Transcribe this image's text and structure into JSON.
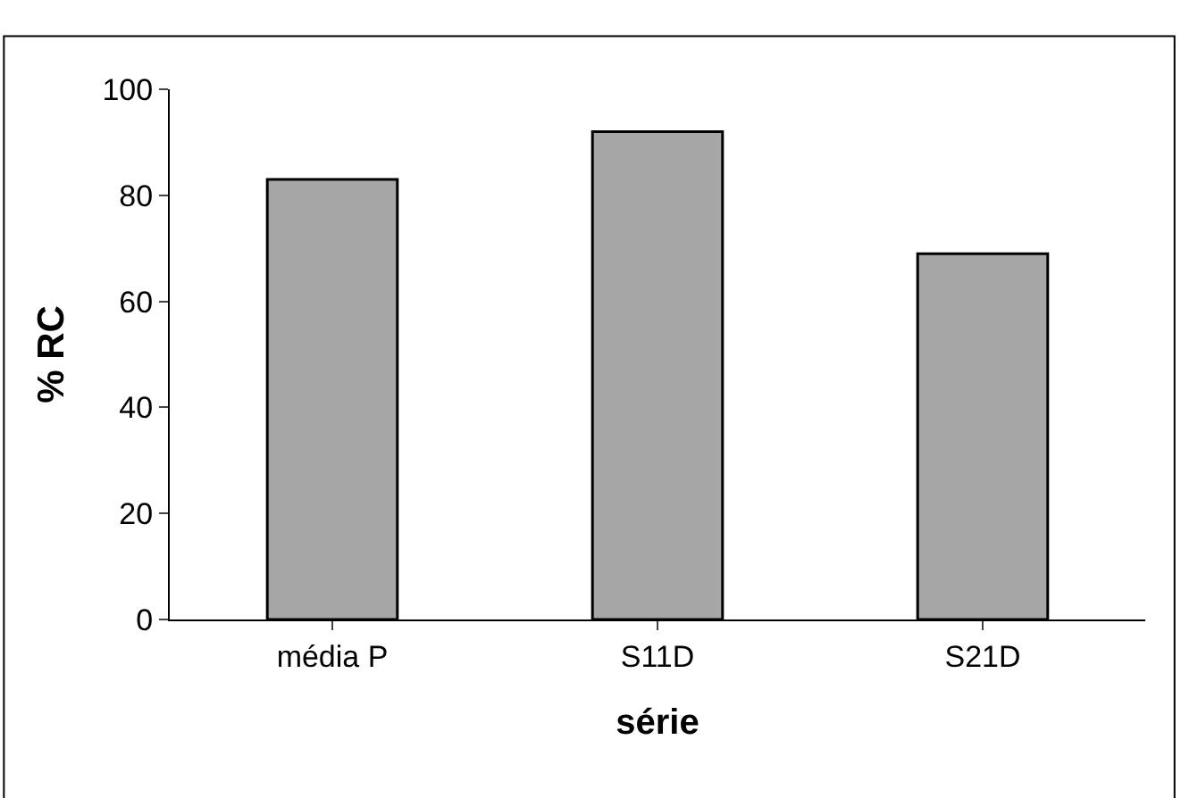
{
  "chart_data": {
    "type": "bar",
    "xlabel": "série",
    "ylabel": "% RC",
    "categories": [
      "média P",
      "S11D",
      "S21D"
    ],
    "values": [
      83,
      92,
      69
    ],
    "color": "#a6a6a6",
    "ylim": [
      0,
      100
    ],
    "yticks": [
      0,
      20,
      40,
      60,
      80,
      100
    ]
  }
}
